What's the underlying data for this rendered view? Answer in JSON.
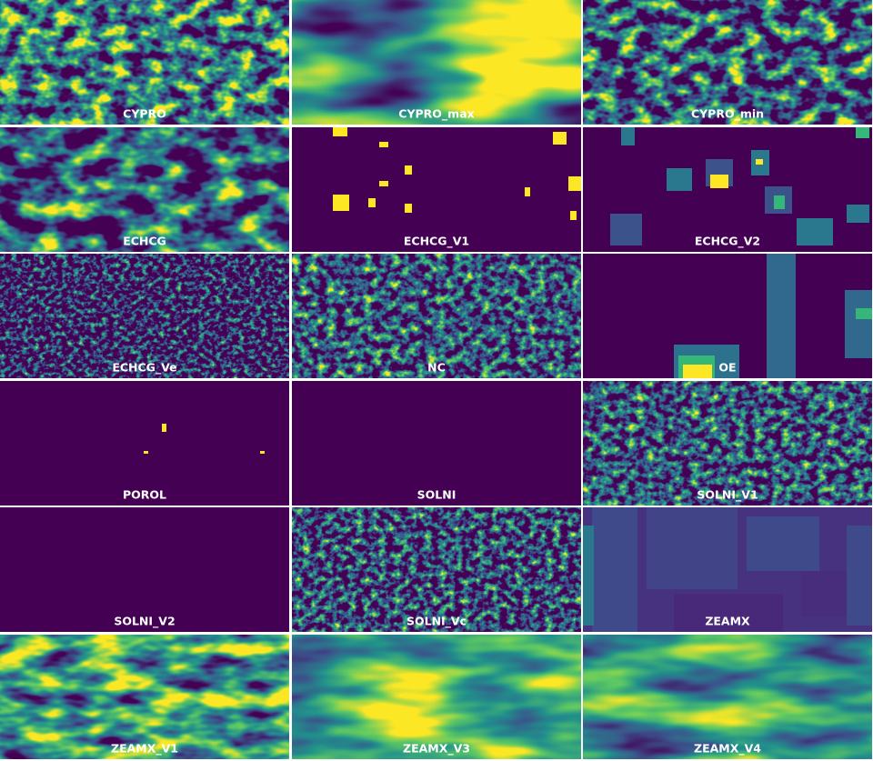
{
  "panels": [
    {
      "label": "CYPRO"
    },
    {
      "label": "CYPRO_max"
    },
    {
      "label": "CYPRO_min"
    },
    {
      "label": "ECHCG"
    },
    {
      "label": "ECHCG_V1"
    },
    {
      "label": "ECHCG_V2"
    },
    {
      "label": "ECHCG_Ve"
    },
    {
      "label": "NC"
    },
    {
      "label": "OE"
    },
    {
      "label": "POROL"
    },
    {
      "label": "SOLNI"
    },
    {
      "label": "SOLNI_V1"
    },
    {
      "label": "SOLNI_V2"
    },
    {
      "label": "SOLNI_Vc"
    },
    {
      "label": "ZEAMX"
    },
    {
      "label": "ZEAMX_V1"
    },
    {
      "label": "ZEAMX_V3"
    },
    {
      "label": "ZEAMX_V4"
    }
  ]
}
